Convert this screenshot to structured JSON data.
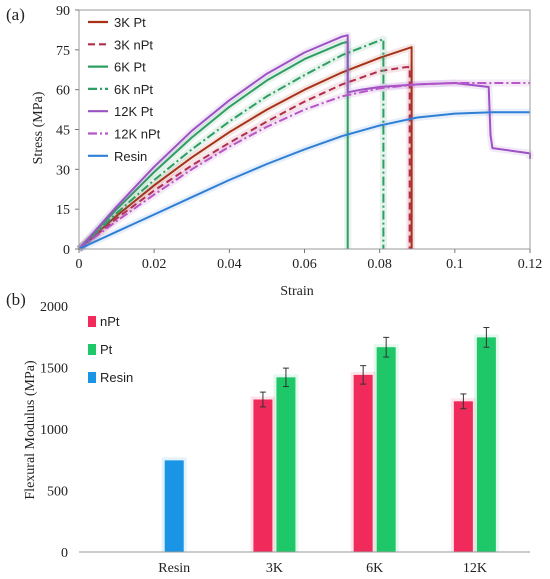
{
  "chart_data": [
    {
      "panel_label": "(a)",
      "type": "line",
      "xlabel": "Strain",
      "ylabel": "Stress (MPa)",
      "xlim": [
        0,
        0.12
      ],
      "ylim": [
        0,
        90
      ],
      "x_ticks": [
        0,
        0.02,
        0.04,
        0.06,
        0.08,
        0.1,
        0.12
      ],
      "x_tick_labels": [
        "0",
        "0.02",
        "0.04",
        "0.06",
        "0.08",
        "0.1",
        "0.12"
      ],
      "y_ticks": [
        0,
        15,
        30,
        45,
        60,
        75,
        90
      ],
      "y_tick_labels": [
        "0",
        "15",
        "30",
        "45",
        "60",
        "75",
        "90"
      ],
      "grid": false,
      "legend_position": "top-left",
      "series": [
        {
          "name": "3K Pt",
          "color": "#a83218",
          "style": "solid",
          "x": [
            0,
            0.01,
            0.02,
            0.03,
            0.04,
            0.05,
            0.06,
            0.07,
            0.08,
            0.0885,
            0.0885
          ],
          "y": [
            0,
            12.5,
            24,
            34.5,
            44,
            52.5,
            60,
            66.5,
            72,
            76,
            0
          ]
        },
        {
          "name": "3K nPt",
          "color": "#b22c4c",
          "style": "dash",
          "x": [
            0,
            0.01,
            0.02,
            0.03,
            0.04,
            0.05,
            0.06,
            0.07,
            0.08,
            0.087,
            0.088,
            0.088
          ],
          "y": [
            0,
            11.5,
            22,
            31.5,
            40,
            48,
            55.5,
            62,
            67,
            68.5,
            68.5,
            0
          ]
        },
        {
          "name": "6K Pt",
          "color": "#2e9e62",
          "style": "solid",
          "x": [
            0,
            0.01,
            0.02,
            0.03,
            0.04,
            0.05,
            0.06,
            0.07,
            0.0715,
            0.0715
          ],
          "y": [
            0,
            15,
            29,
            42,
            53.5,
            63.5,
            71.5,
            77.5,
            78,
            0
          ]
        },
        {
          "name": "6K nPt",
          "color": "#2e9e62",
          "style": "dashdot",
          "x": [
            0,
            0.01,
            0.02,
            0.03,
            0.04,
            0.05,
            0.06,
            0.07,
            0.08,
            0.081,
            0.081
          ],
          "y": [
            0,
            13.5,
            26,
            37.5,
            48,
            57.5,
            65.5,
            73,
            78.5,
            79,
            0
          ]
        },
        {
          "name": "12K Pt",
          "color": "#9c52c4",
          "style": "solid",
          "x": [
            0,
            0.01,
            0.02,
            0.03,
            0.04,
            0.05,
            0.06,
            0.07,
            0.0715,
            0.0715,
            0.075,
            0.08,
            0.09,
            0.1,
            0.109,
            0.1095,
            0.11,
            0.115,
            0.12,
            0.12
          ],
          "y": [
            0,
            16,
            31,
            44.5,
            56,
            66,
            74,
            80,
            80.5,
            59,
            60,
            61,
            62,
            62.5,
            61,
            43,
            38,
            37,
            36,
            34
          ]
        },
        {
          "name": "12K nPt",
          "color": "#b855c8",
          "style": "dashdot",
          "x": [
            0,
            0.01,
            0.02,
            0.03,
            0.04,
            0.05,
            0.06,
            0.07,
            0.08,
            0.09,
            0.1,
            0.11,
            0.12
          ],
          "y": [
            0,
            10.5,
            20.5,
            30,
            38.5,
            46,
            52.5,
            57.5,
            60.5,
            62,
            62.5,
            62.5,
            62.5
          ]
        },
        {
          "name": "Resin",
          "color": "#2f7fd6",
          "style": "solid",
          "x": [
            0,
            0.01,
            0.02,
            0.03,
            0.04,
            0.05,
            0.06,
            0.07,
            0.08,
            0.09,
            0.1,
            0.11,
            0.12
          ],
          "y": [
            0,
            6.5,
            13,
            19.5,
            26,
            32,
            37.5,
            42.5,
            46.5,
            49.5,
            51,
            51.5,
            51.5
          ]
        }
      ]
    },
    {
      "panel_label": "(b)",
      "type": "bar",
      "ylabel": "Flexural Modulus (MPa)",
      "ylim": [
        0,
        2000
      ],
      "y_ticks": [
        0,
        500,
        1000,
        1500,
        2000
      ],
      "y_tick_labels": [
        "0",
        "500",
        "1000",
        "1500",
        "2000"
      ],
      "categories": [
        "Resin",
        "3K",
        "6K",
        "12K"
      ],
      "grid": false,
      "legend_position": "top-left",
      "series": [
        {
          "name": "nPt",
          "color": "#f02a5a",
          "values": [
            null,
            1240,
            1440,
            1225
          ],
          "errors": [
            null,
            60,
            75,
            60
          ]
        },
        {
          "name": "Pt",
          "color": "#1ec768",
          "values": [
            null,
            1420,
            1665,
            1745
          ],
          "errors": [
            null,
            75,
            80,
            80
          ]
        },
        {
          "name": "Resin",
          "color": "#1a95e6",
          "values": [
            745,
            null,
            null,
            null
          ],
          "errors": [
            null,
            null,
            null,
            null
          ]
        }
      ]
    }
  ]
}
